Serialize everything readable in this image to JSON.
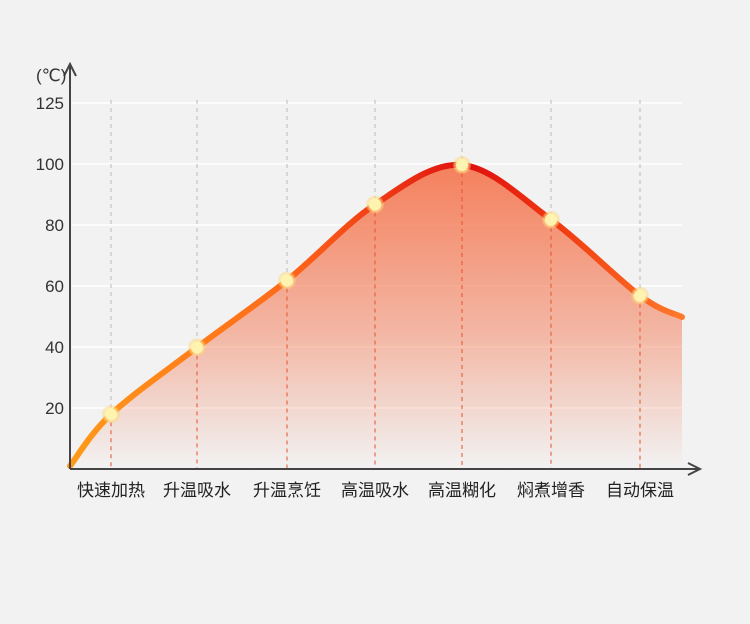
{
  "chart_data": {
    "type": "area",
    "title": "",
    "xlabel": "",
    "ylabel": "(℃)",
    "categories": [
      "快速加热",
      "升温吸水",
      "升温烹饪",
      "高温吸水",
      "高温糊化",
      "焖煮增香",
      "自动保温"
    ],
    "values": [
      18,
      40,
      62,
      87,
      100,
      82,
      57
    ],
    "curve_start": 1,
    "curve_end": 50,
    "yticks": [
      20,
      40,
      60,
      80,
      100,
      125
    ],
    "grid": true,
    "colors": {
      "low": "#ff9a1a",
      "peak": "#e01010",
      "fill": "#f47a55",
      "point": "#fff3b0",
      "background": "#f2f2f2",
      "axis": "#444444"
    }
  }
}
